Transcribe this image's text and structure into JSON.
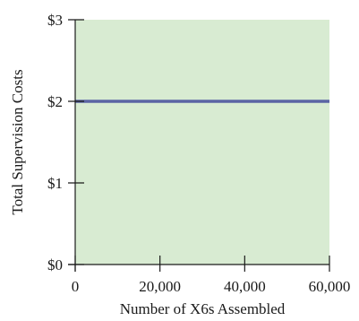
{
  "chart_data": {
    "type": "line",
    "title": "",
    "xlabel": "Number of X6s Assembled",
    "ylabel": "Total Supervision Costs",
    "xlim": [
      0,
      60000
    ],
    "ylim": [
      0,
      3
    ],
    "x_ticks": [
      0,
      20000,
      40000,
      60000
    ],
    "x_tick_labels": [
      "0",
      "20,000",
      "40,000",
      "60,000"
    ],
    "y_ticks": [
      0,
      1,
      2,
      3
    ],
    "y_tick_labels": [
      "$0",
      "$1",
      "$2",
      "$3"
    ],
    "grid": false,
    "series": [
      {
        "x": [
          0,
          60000
        ],
        "y": [
          2,
          2
        ]
      }
    ],
    "colors": {
      "plot_background": "#d8ebd2",
      "line": "#5b64a4",
      "axis": "#1a1a1a"
    }
  }
}
